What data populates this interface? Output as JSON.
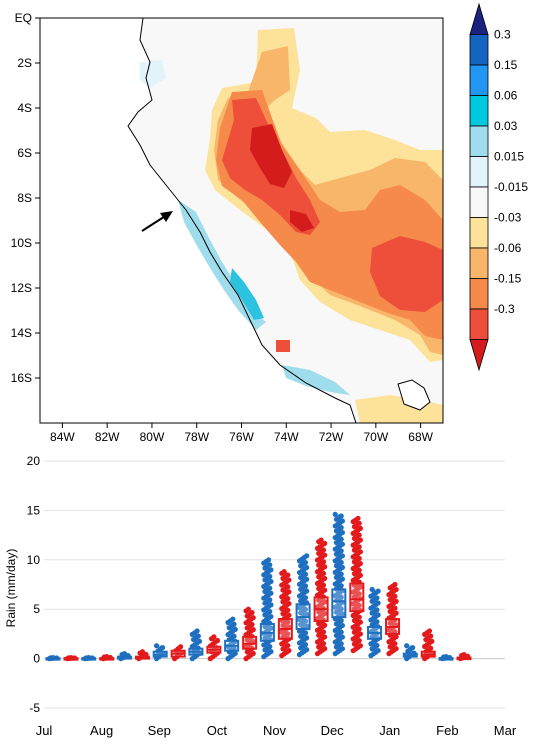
{
  "chart_data": [
    {
      "type": "heatmap",
      "title": "",
      "x_ticks": [
        "84W",
        "82W",
        "80W",
        "78W",
        "76W",
        "74W",
        "72W",
        "70W",
        "68W"
      ],
      "y_ticks": [
        "EQ",
        "2S",
        "4S",
        "6S",
        "8S",
        "10S",
        "12S",
        "14S",
        "16S"
      ],
      "xlim": [
        -85,
        -68
      ],
      "ylim": [
        -17,
        0
      ],
      "colorbar": {
        "labels": [
          "0.3",
          "0.15",
          "0.06",
          "0.03",
          "0.015",
          "-0.015",
          "-0.03",
          "-0.06",
          "-0.15",
          "-0.3"
        ],
        "colors": [
          "#1a237e",
          "#1565c0",
          "#2196f3",
          "#00c8e0",
          "#9fdcec",
          "#e2f4fa",
          "#f8f8f8",
          "#fde29a",
          "#f7b66a",
          "#f58a4a",
          "#ee4f3a",
          "#d41c1c"
        ]
      },
      "annotation": "arrow pointing to coast near 79W 8S"
    },
    {
      "type": "box",
      "xlabel": "",
      "ylabel": "Rain (mm/day)",
      "ylim": [
        -5,
        20
      ],
      "y_ticks": [
        -5,
        0,
        5,
        10,
        15,
        20
      ],
      "categories": [
        "Jul",
        "Aug",
        "Sep",
        "Oct",
        "Nov",
        "Dec",
        "Jan",
        "Feb",
        "Mar"
      ],
      "grid": true,
      "series": [
        {
          "color": "#1f6fc0",
          "boxes": [
            {
              "month": "Jul",
              "q1": 0.0,
              "median": 0.0,
              "q3": 0.05,
              "min": 0.0,
              "max": 0.1
            },
            {
              "month": "Aug",
              "q1": 0.0,
              "median": 0.0,
              "q3": 0.05,
              "min": 0.0,
              "max": 0.1
            },
            {
              "month": "Sep",
              "q1": 0.0,
              "median": 0.1,
              "q3": 0.2,
              "min": 0.0,
              "max": 0.5
            },
            {
              "month": "Sep2",
              "q1": 0.2,
              "median": 0.4,
              "q3": 0.7,
              "min": 0.0,
              "max": 1.3
            },
            {
              "month": "Oct",
              "q1": 0.4,
              "median": 0.7,
              "q3": 1.0,
              "min": 0.0,
              "max": 2.8
            },
            {
              "month": "Oct2",
              "q1": 0.8,
              "median": 1.3,
              "q3": 1.8,
              "min": 0.0,
              "max": 4.0
            },
            {
              "month": "Nov",
              "q1": 1.8,
              "median": 2.6,
              "q3": 3.5,
              "min": 0.2,
              "max": 10.0
            },
            {
              "month": "Nov2",
              "q1": 3.0,
              "median": 4.2,
              "q3": 5.5,
              "min": 0.4,
              "max": 10.4
            },
            {
              "month": "Dec",
              "q1": 4.2,
              "median": 5.8,
              "q3": 7.0,
              "min": 0.5,
              "max": 14.6
            },
            {
              "month": "Jan",
              "q1": 2.0,
              "median": 2.6,
              "q3": 3.2,
              "min": 0.3,
              "max": 7.0
            },
            {
              "month": "Jan2",
              "q1": 0.2,
              "median": 0.3,
              "q3": 0.5,
              "min": 0.0,
              "max": 1.3
            },
            {
              "month": "Feb",
              "q1": 0.0,
              "median": 0.0,
              "q3": 0.05,
              "min": 0.0,
              "max": 0.2
            }
          ]
        },
        {
          "color": "#e31a1c",
          "boxes": [
            {
              "month": "Jul",
              "q1": 0.0,
              "median": 0.0,
              "q3": 0.05,
              "min": 0.0,
              "max": 0.1
            },
            {
              "month": "Aug",
              "q1": 0.0,
              "median": 0.0,
              "q3": 0.05,
              "min": 0.0,
              "max": 0.2
            },
            {
              "month": "Sep",
              "q1": 0.0,
              "median": 0.1,
              "q3": 0.2,
              "min": 0.0,
              "max": 0.7
            },
            {
              "month": "Sep2",
              "q1": 0.2,
              "median": 0.5,
              "q3": 0.8,
              "min": 0.0,
              "max": 1.2
            },
            {
              "month": "Oct",
              "q1": 0.6,
              "median": 0.9,
              "q3": 1.2,
              "min": 0.0,
              "max": 2.2
            },
            {
              "month": "Oct2",
              "q1": 1.0,
              "median": 1.5,
              "q3": 2.2,
              "min": 0.0,
              "max": 5.0
            },
            {
              "month": "Nov",
              "q1": 2.0,
              "median": 3.0,
              "q3": 4.0,
              "min": 0.3,
              "max": 8.8
            },
            {
              "month": "Nov2",
              "q1": 3.8,
              "median": 5.0,
              "q3": 6.2,
              "min": 0.5,
              "max": 12.0
            },
            {
              "month": "Dec",
              "q1": 4.8,
              "median": 6.0,
              "q3": 7.6,
              "min": 0.8,
              "max": 14.2
            },
            {
              "month": "Jan",
              "q1": 2.5,
              "median": 3.2,
              "q3": 4.0,
              "min": 0.5,
              "max": 7.5
            },
            {
              "month": "Jan2",
              "q1": 0.2,
              "median": 0.4,
              "q3": 0.7,
              "min": 0.0,
              "max": 2.8
            },
            {
              "month": "Feb",
              "q1": 0.0,
              "median": 0.05,
              "q3": 0.1,
              "min": 0.0,
              "max": 0.4
            }
          ]
        }
      ]
    }
  ]
}
